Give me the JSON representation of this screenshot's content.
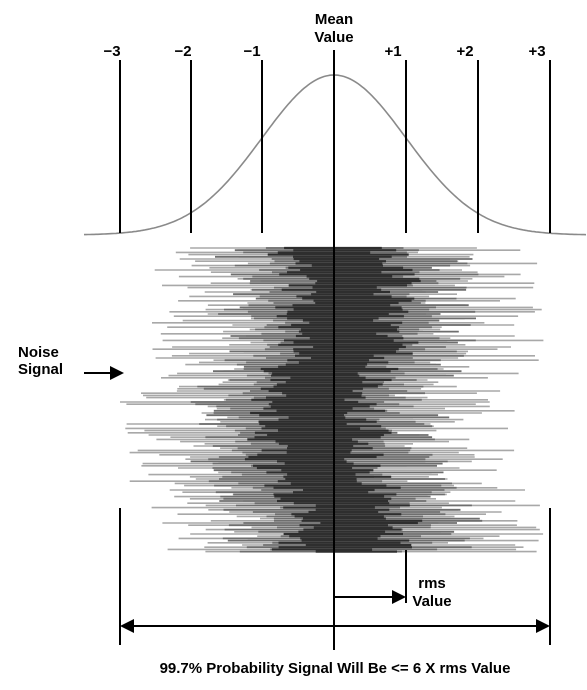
{
  "sigma_labels": [
    "−3",
    "−2",
    "−1",
    "+1",
    "+2",
    "+3"
  ],
  "mean_label": [
    "Mean",
    "Value"
  ],
  "noise_label": [
    "Noise",
    "Signal"
  ],
  "rms_label": [
    "rms",
    "Value"
  ],
  "caption": "99.7% Probability Signal Will Be <= 6 X rms Value",
  "colors": {
    "ink": "#000000",
    "curve": "#8a8a8a",
    "noise_dark": "#2e2e2e",
    "noise_mid": "#6e6e6e",
    "noise_light": "#a8a8a8"
  }
}
